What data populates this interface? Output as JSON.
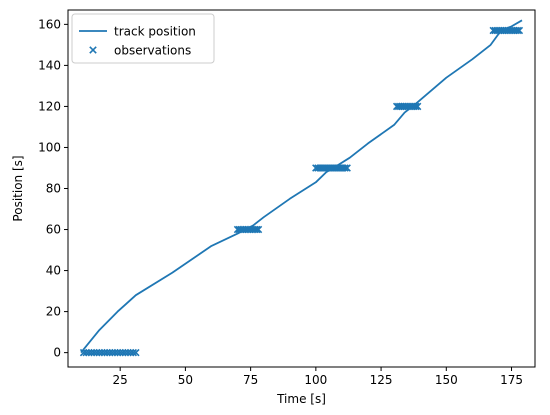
{
  "chart_data": {
    "type": "line",
    "xlabel": "Time [s]",
    "ylabel": "Position [s]",
    "xlim": [
      5,
      184
    ],
    "ylim": [
      -7,
      167
    ],
    "xticks": [
      25,
      50,
      75,
      100,
      125,
      150,
      175
    ],
    "yticks": [
      0,
      20,
      40,
      60,
      80,
      100,
      120,
      140,
      160
    ],
    "grid": false,
    "legend_position": "upper-left",
    "color": "#1f77b4",
    "series": [
      {
        "name": "track position",
        "type": "line",
        "points": [
          [
            10,
            0
          ],
          [
            17,
            11
          ],
          [
            24,
            20
          ],
          [
            31,
            28
          ],
          [
            45,
            39
          ],
          [
            60,
            52
          ],
          [
            70,
            58
          ],
          [
            76,
            62
          ],
          [
            80,
            66
          ],
          [
            90,
            75
          ],
          [
            100,
            83
          ],
          [
            104,
            88
          ],
          [
            108,
            91
          ],
          [
            113,
            95
          ],
          [
            120,
            102
          ],
          [
            130,
            111
          ],
          [
            134,
            117
          ],
          [
            138,
            121
          ],
          [
            150,
            134
          ],
          [
            160,
            143
          ],
          [
            167,
            150
          ],
          [
            171,
            157
          ],
          [
            175,
            159
          ],
          [
            179,
            162
          ]
        ]
      },
      {
        "name": "observations",
        "type": "scatter",
        "marker": "x",
        "groups": [
          {
            "y": 0,
            "x_start": 11,
            "x_end": 31,
            "count": 21
          },
          {
            "y": 60,
            "x_start": 70,
            "x_end": 78,
            "count": 13
          },
          {
            "y": 90,
            "x_start": 100,
            "x_end": 112,
            "count": 16
          },
          {
            "y": 120,
            "x_start": 131,
            "x_end": 139,
            "count": 12
          },
          {
            "y": 157,
            "x_start": 168,
            "x_end": 178,
            "count": 15
          }
        ]
      }
    ]
  }
}
